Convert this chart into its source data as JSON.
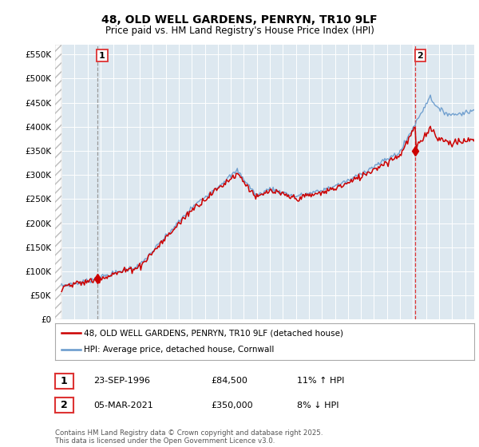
{
  "title": "48, OLD WELL GARDENS, PENRYN, TR10 9LF",
  "subtitle": "Price paid vs. HM Land Registry's House Price Index (HPI)",
  "legend_label_red": "48, OLD WELL GARDENS, PENRYN, TR10 9LF (detached house)",
  "legend_label_blue": "HPI: Average price, detached house, Cornwall",
  "table_row1": [
    "1",
    "23-SEP-1996",
    "£84,500",
    "11% ↑ HPI"
  ],
  "table_row2": [
    "2",
    "05-MAR-2021",
    "£350,000",
    "8% ↓ HPI"
  ],
  "footnote": "Contains HM Land Registry data © Crown copyright and database right 2025.\nThis data is licensed under the Open Government Licence v3.0.",
  "color_red": "#cc0000",
  "color_blue": "#6699cc",
  "color_vline1": "#999999",
  "color_vline2": "#dd3333",
  "background_chart": "#dde8f0",
  "grid_color": "#ffffff",
  "ylim": [
    0,
    570000
  ],
  "yticks": [
    0,
    50000,
    100000,
    150000,
    200000,
    250000,
    300000,
    350000,
    400000,
    450000,
    500000,
    550000
  ],
  "sale1_x": 1996.73,
  "sale1_y": 84500,
  "sale2_x": 2021.17,
  "sale2_y": 350000,
  "xmin": 1993.5,
  "xmax": 2025.7
}
